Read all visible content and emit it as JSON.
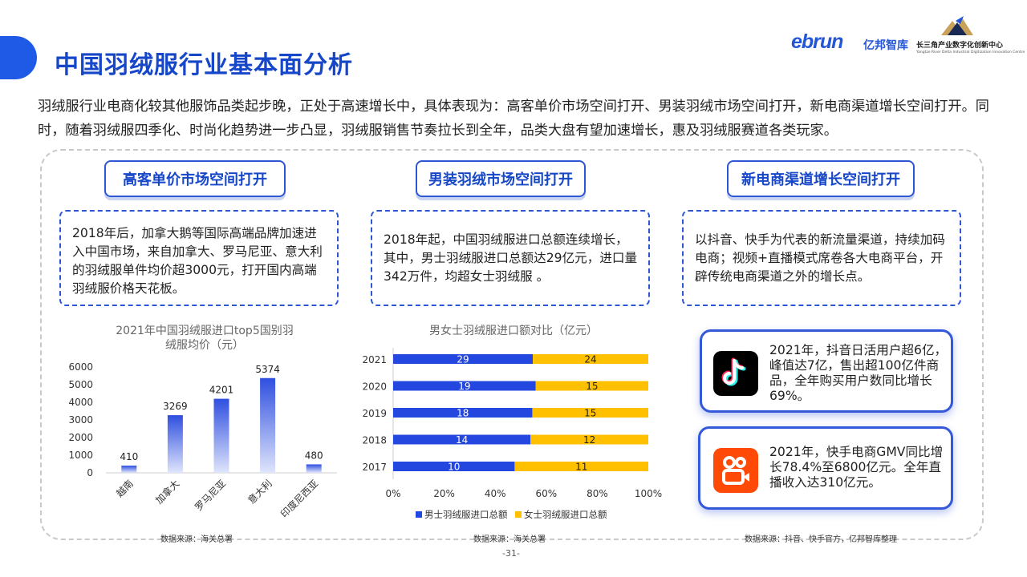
{
  "header": {
    "title": "中国羽绒服行业基本面分析",
    "logo": {
      "brand": "ebrun",
      "brand_cn": "亿邦智库",
      "partner_cn": "长三角产业数字化创新中心",
      "partner_en": "Yangtze River Delta Industrial Digitization Innovation Centre"
    }
  },
  "intro": "羽绒服行业电商化较其他服饰品类起步晚，正处于高速增长中，具体表现为：高客单价市场空间打开、男装羽绒市场空间打开，新电商渠道增长空间打开。同时，随着羽绒服四季化、时尚化趋势进一步凸显，羽绒服销售节奏拉长到全年，品类大盘有望加速增长，惠及羽绒服赛道各类玩家。",
  "columns": [
    {
      "heading": "高客单价市场空间打开",
      "text": "2018年后，加拿大鹅等国际高端品牌加速进入中国市场，来自加拿大、罗马尼亚、意大利的羽绒服单件均价超3000元，打开国内高端羽绒服价格天花板。",
      "source": "数据来源：海关总署"
    },
    {
      "heading": "男装羽绒市场空间打开",
      "text": "2018年起，中国羽绒服进口总额连续增长，其中，男士羽绒服进口总额达29亿元，进口量342万件，均超女士羽绒服 。",
      "source": "数据来源：海关总署"
    },
    {
      "heading": "新电商渠道增长空间打开",
      "text": "以抖音、快手为代表的新流量渠道，持续加码电商；视频+直播模式席卷各大电商平台，开辟传统电商渠道之外的增长点。",
      "source": "数据来源：抖音、快手官方，亿邦智库整理"
    }
  ],
  "cards": [
    {
      "icon": "douyin-icon",
      "text": "2021年，抖音日活用户超6亿，峰值达7亿，售出超100亿件商品，全年购买用户数同比增长69%。"
    },
    {
      "icon": "kuaishou-icon",
      "text": "2021年，快手电商GMV同比增长78.4%至6800亿元。全年直播收入达310亿元。"
    }
  ],
  "chart_data": [
    {
      "type": "bar",
      "title": "2021年中国羽绒服进口top5国别羽绒服均价（元）",
      "categories": [
        "越南",
        "加拿大",
        "罗马尼亚",
        "意大利",
        "印度尼西亚"
      ],
      "values": [
        410,
        3269,
        4201,
        5374,
        480
      ],
      "ylim": [
        0,
        6000
      ],
      "yticks": [
        0,
        1000,
        2000,
        3000,
        4000,
        5000,
        6000
      ],
      "grid": false,
      "color": "#2f4fe0"
    },
    {
      "type": "bar",
      "orientation": "horizontal",
      "stacked": "percent",
      "title": "男女士羽绒服进口额对比（亿元）",
      "categories": [
        "2021",
        "2020",
        "2019",
        "2018",
        "2017"
      ],
      "series": [
        {
          "name": "男士羽绒服进口总额",
          "values": [
            29,
            19,
            18,
            14,
            10
          ],
          "color": "#2447e0"
        },
        {
          "name": "女士羽绒服进口总额",
          "values": [
            24,
            15,
            15,
            12,
            11
          ],
          "color": "#ffc000"
        }
      ],
      "xticks": [
        "0%",
        "20%",
        "40%",
        "60%",
        "80%",
        "100%"
      ],
      "legend": "bottom"
    }
  ],
  "page_number": "-31-"
}
